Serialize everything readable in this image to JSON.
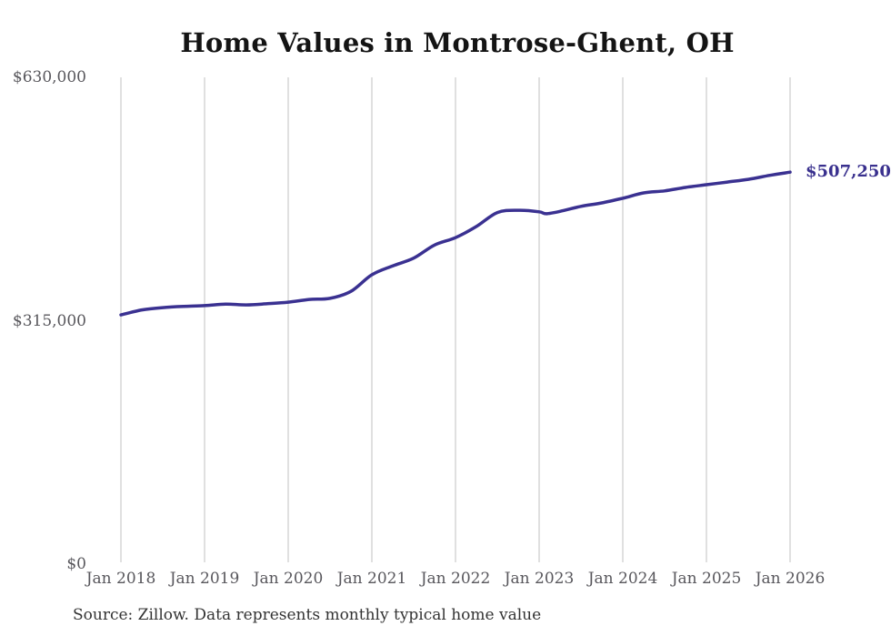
{
  "title": "Home Values in Montrose-Ghent, OH",
  "source_note": "Source: Zillow. Data represents monthly typical home value",
  "colors": {
    "line": "#3a3191",
    "annotation": "#39308e",
    "grid": "#c2c2c2",
    "tick_text": "#58575c",
    "title_text": "#141414",
    "source_text": "#333333",
    "background": "#ffffff"
  },
  "chart_data": {
    "type": "line",
    "title": "Home Values in Montrose-Ghent, OH",
    "xlabel": "",
    "ylabel": "",
    "x_tick_labels": [
      "Jan 2018",
      "Jan 2019",
      "Jan 2020",
      "Jan 2021",
      "Jan 2022",
      "Jan 2023",
      "Jan 2024",
      "Jan 2025",
      "Jan 2026"
    ],
    "y_tick_labels": [
      "$0",
      "$315,000",
      "$630,000"
    ],
    "y_tick_values": [
      0,
      315000,
      630000
    ],
    "ylim": [
      0,
      630000
    ],
    "x_range_months": [
      "2018-01",
      "2026-01"
    ],
    "grid": "vertical-only",
    "legend": "none",
    "series": [
      {
        "name": "Typical home value",
        "points": [
          {
            "date": "2018-01",
            "value": 322500
          },
          {
            "date": "2018-04",
            "value": 329000
          },
          {
            "date": "2018-07",
            "value": 332000
          },
          {
            "date": "2018-10",
            "value": 333500
          },
          {
            "date": "2019-01",
            "value": 334500
          },
          {
            "date": "2019-04",
            "value": 336500
          },
          {
            "date": "2019-07",
            "value": 335500
          },
          {
            "date": "2019-10",
            "value": 337000
          },
          {
            "date": "2020-01",
            "value": 339000
          },
          {
            "date": "2020-04",
            "value": 342500
          },
          {
            "date": "2020-07",
            "value": 344000
          },
          {
            "date": "2020-10",
            "value": 353000
          },
          {
            "date": "2021-01",
            "value": 374500
          },
          {
            "date": "2021-04",
            "value": 386000
          },
          {
            "date": "2021-07",
            "value": 396000
          },
          {
            "date": "2021-10",
            "value": 413000
          },
          {
            "date": "2022-01",
            "value": 422500
          },
          {
            "date": "2022-04",
            "value": 437000
          },
          {
            "date": "2022-07",
            "value": 455000
          },
          {
            "date": "2022-10",
            "value": 458000
          },
          {
            "date": "2023-01",
            "value": 456000
          },
          {
            "date": "2023-02",
            "value": 453500
          },
          {
            "date": "2023-04",
            "value": 456500
          },
          {
            "date": "2023-07",
            "value": 463000
          },
          {
            "date": "2023-10",
            "value": 467500
          },
          {
            "date": "2024-01",
            "value": 473500
          },
          {
            "date": "2024-04",
            "value": 480500
          },
          {
            "date": "2024-07",
            "value": 483000
          },
          {
            "date": "2024-10",
            "value": 487500
          },
          {
            "date": "2025-01",
            "value": 491000
          },
          {
            "date": "2025-04",
            "value": 494500
          },
          {
            "date": "2025-07",
            "value": 498000
          },
          {
            "date": "2025-10",
            "value": 503000
          },
          {
            "date": "2026-01",
            "value": 507250
          }
        ]
      }
    ],
    "end_annotation": {
      "text": "$507,250",
      "date": "2026-01",
      "value": 507250
    }
  }
}
